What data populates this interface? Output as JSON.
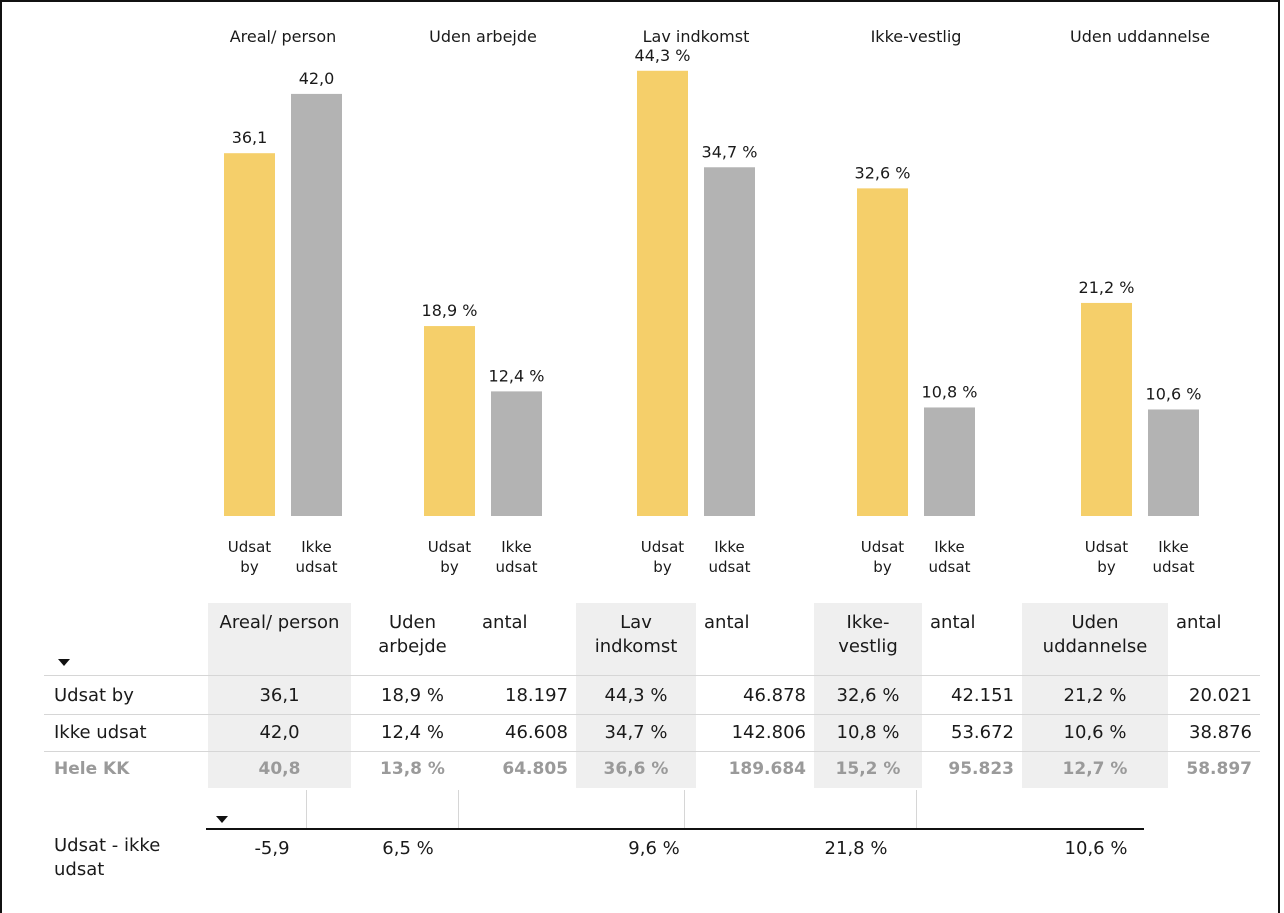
{
  "chart_data": {
    "type": "bar",
    "groups": [
      {
        "title": "Areal/ person",
        "values": [
          36.1,
          42.0
        ],
        "labels": [
          "36,1",
          "42,0"
        ]
      },
      {
        "title": "Uden arbejde",
        "values": [
          18.9,
          12.4
        ],
        "labels": [
          "18,9 %",
          "12,4 %"
        ]
      },
      {
        "title": "Lav indkomst",
        "values": [
          44.3,
          34.7
        ],
        "labels": [
          "44,3 %",
          "34,7 %"
        ]
      },
      {
        "title": "Ikke-vestlig",
        "values": [
          32.6,
          10.8
        ],
        "labels": [
          "32,6 %",
          "10,8 %"
        ]
      },
      {
        "title": "Uden uddannelse",
        "values": [
          21.2,
          10.6
        ],
        "labels": [
          "21,2 %",
          "10,6 %"
        ]
      }
    ],
    "series": [
      {
        "label_line1": "Udsat",
        "label_line2": "by",
        "color": "#f5cf6a"
      },
      {
        "label_line1": "Ikke",
        "label_line2": "udsat",
        "color": "#b3b3b3"
      }
    ],
    "ylim": [
      0,
      50
    ]
  },
  "table": {
    "headers": [
      "Areal/ person",
      "Uden arbejde",
      "antal",
      "Lav indkomst",
      "antal",
      "Ikke- vestlig",
      "antal",
      "Uden uddannelse",
      "antal"
    ],
    "rows": [
      {
        "label": "Udsat by",
        "cells": [
          "36,1",
          "18,9 %",
          "18.197",
          "44,3 %",
          "46.878",
          "32,6 %",
          "42.151",
          "21,2 %",
          "20.021"
        ]
      },
      {
        "label": "Ikke udsat",
        "cells": [
          "42,0",
          "12,4 %",
          "46.608",
          "34,7 %",
          "142.806",
          "10,8 %",
          "53.672",
          "10,6 %",
          "38.876"
        ]
      },
      {
        "label": "Hele KK",
        "cells": [
          "40,8",
          "13,8 %",
          "64.805",
          "36,6 %",
          "189.684",
          "15,2 %",
          "95.823",
          "12,7 %",
          "58.897"
        ]
      }
    ]
  },
  "diff": {
    "label": "Udsat - ikke udsat",
    "values": [
      "-5,9",
      "6,5 %",
      "9,6 %",
      "21,8 %",
      "10,6 %"
    ]
  },
  "colors": {
    "udsat": "#f5cf6a",
    "ikke_udsat": "#b3b3b3",
    "total_text": "#9a9a9a",
    "shade": "#efefef"
  }
}
